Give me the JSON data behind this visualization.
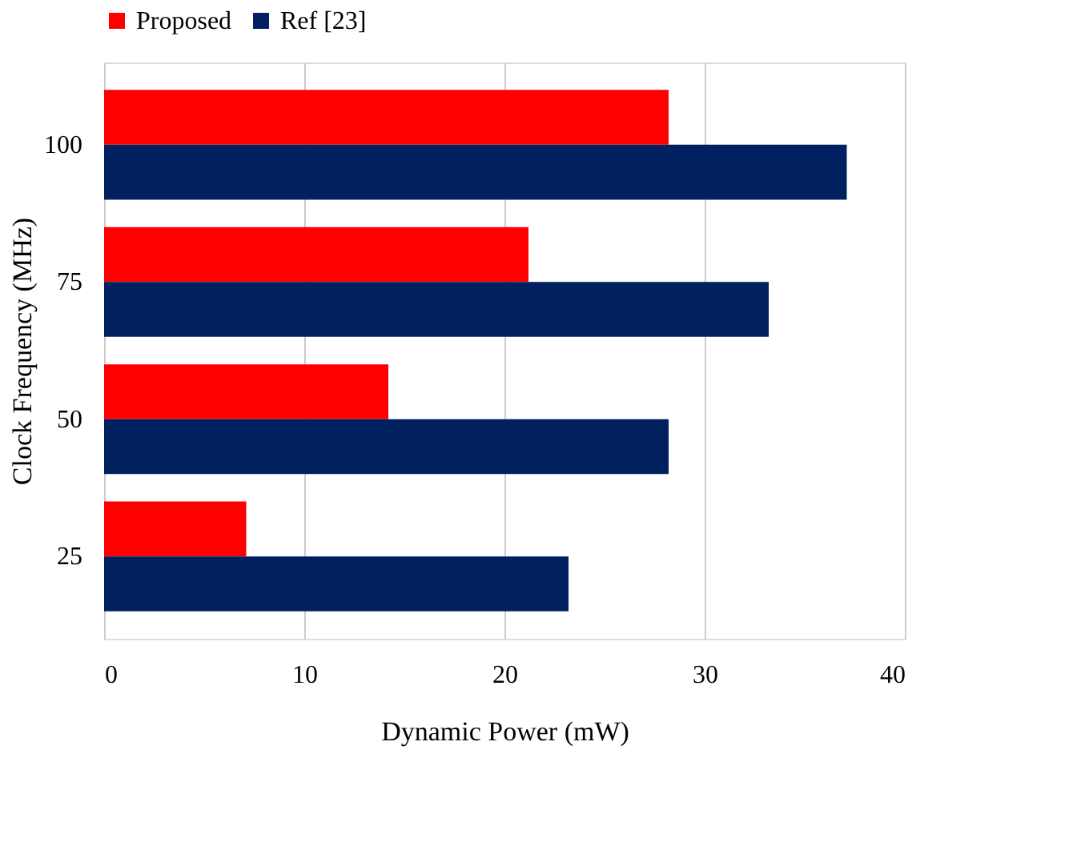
{
  "chart_data": {
    "type": "bar",
    "orientation": "horizontal",
    "xlabel": "Dynamic Power (mW)",
    "ylabel": "Clock Frequency (MHz)",
    "categories": [
      "100",
      "75",
      "50",
      "25"
    ],
    "series": [
      {
        "name": "Proposed",
        "color": "#ff0000",
        "values": [
          28.2,
          21.2,
          14.2,
          7.1
        ]
      },
      {
        "name": "Ref [23]",
        "color": "#002060",
        "values": [
          37.1,
          33.2,
          28.2,
          23.2
        ]
      }
    ],
    "xlim": [
      0,
      40
    ],
    "xticks": [
      0,
      10,
      20,
      30,
      40
    ],
    "grid": "x",
    "legend": "top"
  }
}
